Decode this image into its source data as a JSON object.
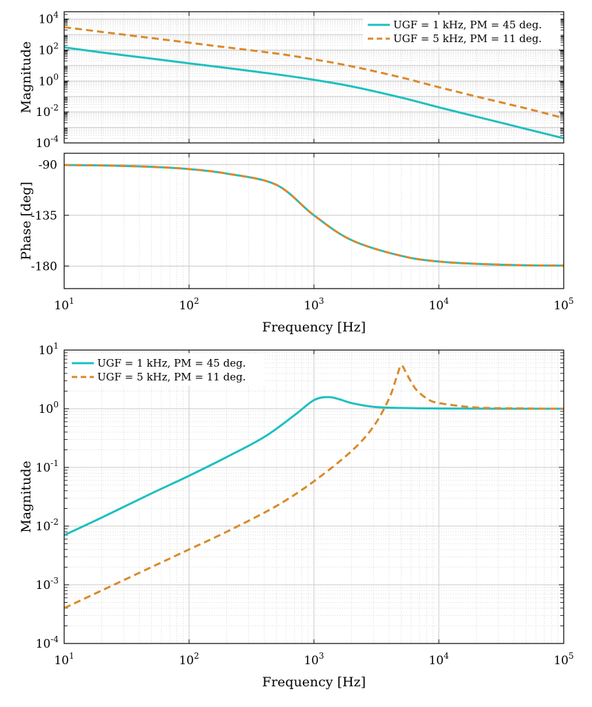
{
  "colors": {
    "series_solid": "#1fbfbf",
    "series_dashed": "#d98a2b",
    "grid_major": "#c8c8c8",
    "grid_minor": "#e2e2e2",
    "axes": "#000000"
  },
  "chart_data": [
    {
      "type": "line",
      "ylabel": "Magnitude",
      "xlabel": "",
      "xscale": "log",
      "yscale": "log",
      "xlim": [
        10,
        100000
      ],
      "ylim": [
        0.0001,
        30000
      ],
      "yticks": [
        0.0001,
        0.01,
        1,
        100,
        10000
      ],
      "ytick_labels": [
        {
          "base": "10",
          "exp": "-4"
        },
        {
          "base": "10",
          "exp": "-2"
        },
        {
          "base": "10",
          "exp": "0"
        },
        {
          "base": "10",
          "exp": "2"
        },
        {
          "base": "10",
          "exp": "4"
        }
      ],
      "grid": true,
      "legend_position": "top-right",
      "series": [
        {
          "name": "UGF = 1 kHz, PM = 45 deg.",
          "style": "solid",
          "x": [
            10,
            20,
            50,
            100,
            200,
            500,
            1000,
            2000,
            5000,
            10000,
            20000,
            50000,
            100000
          ],
          "y": [
            150,
            70,
            28,
            14,
            7,
            2.7,
            1.2,
            0.45,
            0.085,
            0.02,
            0.005,
            0.0008,
            0.0002
          ]
        },
        {
          "name": "UGF = 5 kHz, PM = 11 deg.",
          "style": "dashed",
          "x": [
            10,
            20,
            50,
            100,
            200,
            500,
            1000,
            2000,
            5000,
            10000,
            20000,
            50000,
            100000
          ],
          "y": [
            3000,
            1500,
            600,
            300,
            150,
            60,
            25,
            9,
            1.7,
            0.4,
            0.1,
            0.017,
            0.004
          ]
        }
      ]
    },
    {
      "type": "line",
      "ylabel": "Phase [deg]",
      "xlabel": "Frequency [Hz]",
      "xscale": "log",
      "yscale": "linear",
      "xlim": [
        10,
        100000
      ],
      "ylim": [
        -200,
        -80
      ],
      "yticks": [
        -180,
        -135,
        -90
      ],
      "ytick_labels": [
        "-180",
        "-135",
        "-90"
      ],
      "xticks": [
        10,
        100,
        1000,
        10000,
        100000
      ],
      "xtick_labels": [
        {
          "base": "10",
          "exp": "1"
        },
        {
          "base": "10",
          "exp": "2"
        },
        {
          "base": "10",
          "exp": "3"
        },
        {
          "base": "10",
          "exp": "4"
        },
        {
          "base": "10",
          "exp": "5"
        }
      ],
      "grid": true,
      "series": [
        {
          "name": "UGF = 1 kHz, PM = 45 deg.",
          "style": "solid",
          "x": [
            10,
            20,
            50,
            100,
            200,
            500,
            1000,
            2000,
            5000,
            10000,
            20000,
            50000,
            100000
          ],
          "y": [
            -90.4,
            -90.8,
            -92,
            -94,
            -98,
            -108,
            -135,
            -157,
            -171,
            -176,
            -178,
            -179.3,
            -179.6
          ]
        },
        {
          "name": "UGF = 5 kHz, PM = 11 deg.",
          "style": "dashed",
          "x": [
            10,
            20,
            50,
            100,
            200,
            500,
            1000,
            2000,
            5000,
            10000,
            20000,
            50000,
            100000
          ],
          "y": [
            -90.4,
            -90.8,
            -92,
            -94,
            -98,
            -108,
            -135,
            -157,
            -171,
            -176,
            -178,
            -179.3,
            -179.6
          ]
        }
      ]
    },
    {
      "type": "line",
      "ylabel": "Magnitude",
      "xlabel": "Frequency [Hz]",
      "xscale": "log",
      "yscale": "log",
      "xlim": [
        10,
        100000
      ],
      "ylim": [
        0.0001,
        10
      ],
      "yticks": [
        0.0001,
        0.001,
        0.01,
        0.1,
        1,
        10
      ],
      "ytick_labels": [
        {
          "base": "10",
          "exp": "-4"
        },
        {
          "base": "10",
          "exp": "-3"
        },
        {
          "base": "10",
          "exp": "-2"
        },
        {
          "base": "10",
          "exp": "-1"
        },
        {
          "base": "10",
          "exp": "0"
        },
        {
          "base": "10",
          "exp": "1"
        }
      ],
      "xticks": [
        10,
        100,
        1000,
        10000,
        100000
      ],
      "xtick_labels": [
        {
          "base": "10",
          "exp": "1"
        },
        {
          "base": "10",
          "exp": "2"
        },
        {
          "base": "10",
          "exp": "3"
        },
        {
          "base": "10",
          "exp": "4"
        },
        {
          "base": "10",
          "exp": "5"
        }
      ],
      "grid": true,
      "legend_position": "top-left",
      "series": [
        {
          "name": "UGF = 1 kHz, PM = 45 deg.",
          "style": "solid",
          "x": [
            10,
            20,
            50,
            100,
            200,
            400,
            700,
            1000,
            1300,
            1600,
            2000,
            3000,
            5000,
            10000,
            30000,
            100000
          ],
          "y": [
            0.007,
            0.014,
            0.036,
            0.072,
            0.15,
            0.33,
            0.78,
            1.4,
            1.58,
            1.45,
            1.25,
            1.08,
            1.03,
            1.01,
            1.0,
            1.0
          ]
        },
        {
          "name": "UGF = 5 kHz, PM = 11 deg.",
          "style": "dashed",
          "x": [
            10,
            20,
            50,
            100,
            200,
            500,
            1000,
            2000,
            3000,
            4000,
            4600,
            5000,
            5500,
            6500,
            8000,
            10000,
            20000,
            50000,
            100000
          ],
          "y": [
            0.0004,
            0.0008,
            0.002,
            0.004,
            0.008,
            0.022,
            0.058,
            0.19,
            0.5,
            1.5,
            3.5,
            5.5,
            4.0,
            2.2,
            1.5,
            1.25,
            1.05,
            1.01,
            1.0
          ]
        }
      ]
    }
  ]
}
